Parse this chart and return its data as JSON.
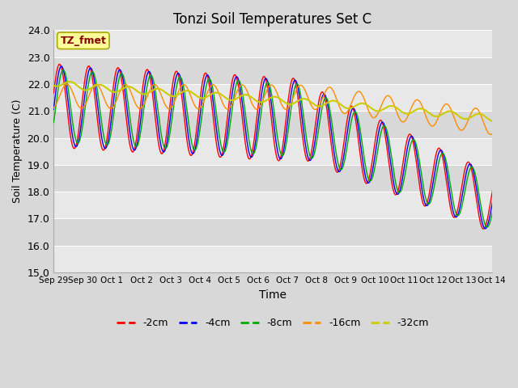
{
  "title": "Tonzi Soil Temperatures Set C",
  "xlabel": "Time",
  "ylabel": "Soil Temperature (C)",
  "ylim": [
    15.0,
    24.0
  ],
  "yticks": [
    15.0,
    16.0,
    17.0,
    18.0,
    19.0,
    20.0,
    21.0,
    22.0,
    23.0,
    24.0
  ],
  "xtick_labels": [
    "Sep 29",
    "Sep 30",
    "Oct 1",
    "Oct 2",
    "Oct 3",
    "Oct 4",
    "Oct 5",
    "Oct 6",
    "Oct 7",
    "Oct 8",
    "Oct 9",
    "Oct 10",
    "Oct 11",
    "Oct 12",
    "Oct 13",
    "Oct 14"
  ],
  "annotation_text": "TZ_fmet",
  "annotation_color": "#8B0000",
  "annotation_bg": "#FFFF99",
  "colors": {
    "-2cm": "#FF0000",
    "-4cm": "#0000FF",
    "-8cm": "#00AA00",
    "-16cm": "#FF8C00",
    "-32cm": "#CCCC00"
  },
  "bg_color": "#D8D8D8",
  "plot_bg_bands": [
    "#E8E8E8",
    "#D8D8D8"
  ],
  "grid_color": "#FFFFFF"
}
